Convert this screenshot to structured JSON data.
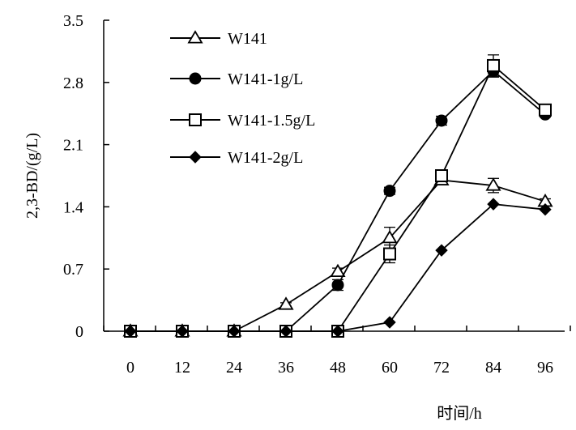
{
  "chart_data": {
    "type": "line",
    "title": "",
    "xlabel": "时间/h",
    "ylabel": "2,3-BD/(g/L)",
    "x": [
      0,
      12,
      24,
      36,
      48,
      60,
      72,
      84,
      96
    ],
    "x_tick_labels": [
      "0",
      "12",
      "24",
      "36",
      "48",
      "60",
      "72",
      "84",
      "96"
    ],
    "ylim": [
      0,
      3.5
    ],
    "y_ticks": [
      0,
      0.7,
      1.4,
      2.1,
      2.8,
      3.5
    ],
    "y_tick_labels": [
      "0",
      "0.7",
      "1.4",
      "2.1",
      "2.8",
      "3.5"
    ],
    "grid": false,
    "legend_position": "top-left",
    "series": [
      {
        "name": "W141",
        "marker": "triangle-open",
        "values": [
          0,
          0,
          0,
          0.3,
          0.67,
          1.05,
          1.7,
          1.64,
          1.46
        ],
        "errors": [
          0,
          0,
          0,
          0.02,
          0.04,
          0.12,
          0.05,
          0.08,
          0.03
        ]
      },
      {
        "name": "W141-1g/L",
        "marker": "circle-filled",
        "values": [
          0,
          0,
          0,
          0,
          0.52,
          1.58,
          2.37,
          2.93,
          2.44
        ],
        "errors": [
          0,
          0,
          0,
          0,
          0.06,
          0.04,
          0.05,
          0.07,
          0.03
        ]
      },
      {
        "name": "W141-1.5g/L",
        "marker": "square-open",
        "values": [
          0,
          0,
          0,
          0,
          0,
          0.87,
          1.75,
          2.99,
          2.49
        ],
        "errors": [
          0,
          0,
          0,
          0,
          0,
          0.1,
          0.04,
          0.12,
          0.03
        ]
      },
      {
        "name": "W141-2g/L",
        "marker": "diamond-filled",
        "values": [
          0,
          0,
          0,
          0,
          0,
          0.1,
          0.91,
          1.43,
          1.37
        ],
        "errors": [
          0,
          0,
          0,
          0,
          0,
          0,
          0,
          0,
          0
        ]
      }
    ]
  }
}
